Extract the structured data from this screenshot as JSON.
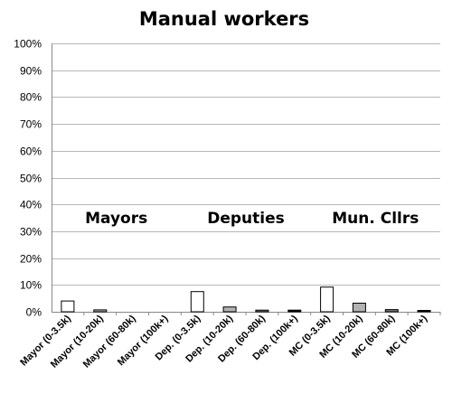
{
  "chart_data": {
    "type": "bar",
    "title": "Manual workers",
    "xlabel": "",
    "ylabel": "",
    "ylim": [
      0,
      100
    ],
    "yticks": [
      "0%",
      "10%",
      "20%",
      "30%",
      "40%",
      "50%",
      "60%",
      "70%",
      "80%",
      "90%",
      "100%"
    ],
    "grid": true,
    "categories": [
      "Mayor (0-3.5k)",
      "Mayor (10-20k)",
      "Mayor (60-80k)",
      "Mayor (100k+)",
      "Dep. (0-3.5k)",
      "Dep. (10-20k)",
      "Dep. (60-80k)",
      "Dep. (100k+)",
      "MC (0-3.5k)",
      "MC (10-20k)",
      "MC (60-80k)",
      "MC (100k+)"
    ],
    "values": [
      4.0,
      0.7,
      0,
      0,
      7.5,
      1.8,
      0.6,
      0.6,
      9.2,
      3.2,
      0.8,
      0.5
    ],
    "bar_colors": [
      "#ffffff",
      "#b3b3b3",
      "#7a7a7a",
      "#000000"
    ],
    "group_labels": [
      "Mayors",
      "Deputies",
      "Mun. Cllrs"
    ]
  }
}
